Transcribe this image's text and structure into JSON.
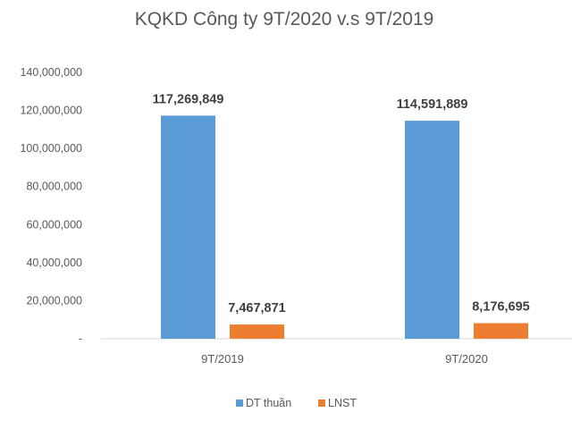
{
  "chart_data": {
    "type": "bar",
    "title": "KQKD Công ty 9T/2020 v.s 9T/2019",
    "categories": [
      "9T/2019",
      "9T/2020"
    ],
    "series": [
      {
        "name": "DT thuần",
        "values": [
          117269849,
          114591889
        ],
        "labels": [
          "117,269,849",
          "114,591,889"
        ],
        "color": "#5B9BD5"
      },
      {
        "name": "LNST",
        "values": [
          7467871,
          8176695
        ],
        "labels": [
          "7,467,871",
          "8,176,695"
        ],
        "color": "#ED7D31"
      }
    ],
    "ylim": [
      0,
      140000000
    ],
    "yticks": [
      0,
      20000000,
      40000000,
      60000000,
      80000000,
      100000000,
      120000000,
      140000000
    ],
    "ytick_labels": [
      "-",
      "20,000,000",
      "40,000,000",
      "60,000,000",
      "80,000,000",
      "100,000,000",
      "120,000,000",
      "140,000,000"
    ],
    "xlabel": "",
    "ylabel": "",
    "grid": false,
    "legend": "bottom"
  }
}
